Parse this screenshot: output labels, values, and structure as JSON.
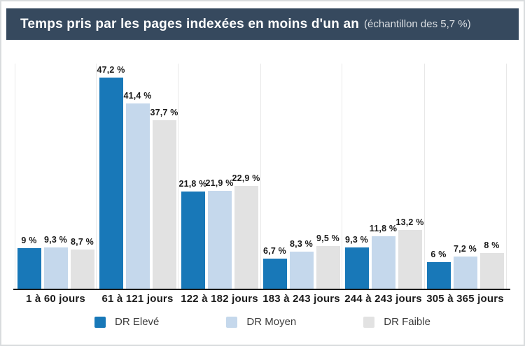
{
  "header": {
    "title": "Temps pris par les pages indexées en moins d'un an",
    "subtitle": "(échantillon des 5,7 %)"
  },
  "colors": {
    "header_background": "#36495e",
    "title_text": "#ffffff",
    "dr_eleve": "#1878b8",
    "dr_moyen": "#c5d8ec",
    "dr_faible": "#e2e2e2",
    "axis": "#1a1a1a",
    "gridline": "#e8e8e8"
  },
  "chart_data": {
    "type": "bar",
    "title": "Temps pris par les pages indexées en moins d'un an",
    "subtitle": "(échantillon des 5,7 %)",
    "categories": [
      "1 à 60 jours",
      "61 à 121 jours",
      "122 à 182 jours",
      "183 à 243 jours",
      "244 à 243 jours",
      "305 à 365 jours"
    ],
    "series": [
      {
        "name": "DR Elevé",
        "color": "#1878b8",
        "values": [
          9,
          47.2,
          21.8,
          6.7,
          9.3,
          6
        ],
        "labels": [
          "9 %",
          "47,2 %",
          "21,8 %",
          "6,7 %",
          "9,3 %",
          "6 %"
        ]
      },
      {
        "name": "DR Moyen",
        "color": "#c5d8ec",
        "values": [
          9.3,
          41.4,
          21.9,
          8.3,
          11.8,
          7.2
        ],
        "labels": [
          "9,3 %",
          "41,4 %",
          "21,9 %",
          "8,3 %",
          "11,8 %",
          "7,2 %"
        ]
      },
      {
        "name": "DR Faible",
        "color": "#e2e2e2",
        "values": [
          8.7,
          37.7,
          22.9,
          9.5,
          13.2,
          8
        ],
        "labels": [
          "8,7 %",
          "37,7 %",
          "22,9 %",
          "9,5 %",
          "13,2 %",
          "8 %"
        ]
      }
    ],
    "xlabel": "",
    "ylabel": "",
    "ylim": [
      0,
      50
    ],
    "grid": "vertical-separators",
    "legend_position": "bottom",
    "value_labels_shown": true
  }
}
